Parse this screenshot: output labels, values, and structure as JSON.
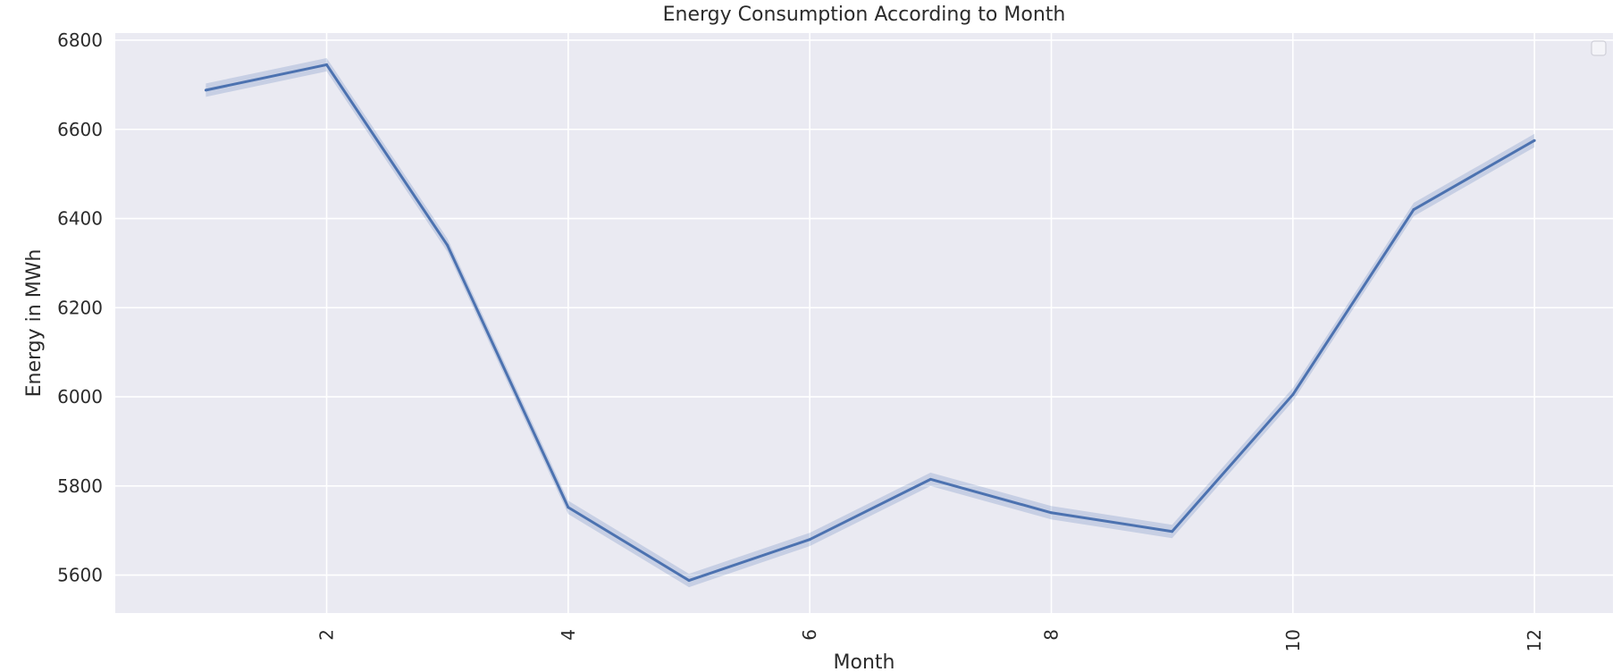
{
  "chart_data": {
    "type": "line",
    "title": "Energy Consumption According to Month",
    "xlabel": "Month",
    "ylabel": "Energy in MWh",
    "x": [
      1,
      2,
      3,
      4,
      5,
      6,
      7,
      8,
      9,
      10,
      11,
      12
    ],
    "series": [
      {
        "values": [
          6688,
          6745,
          6340,
          5752,
          5588,
          5680,
          5815,
          5740,
          5698,
          6005,
          6420,
          6575
        ],
        "ci_lower": [
          6673,
          6730,
          6325,
          5737,
          5573,
          5665,
          5800,
          5725,
          5683,
          5990,
          6405,
          6560
        ],
        "ci_upper": [
          6703,
          6760,
          6355,
          5767,
          5603,
          5695,
          5830,
          5755,
          5713,
          6020,
          6435,
          6590
        ],
        "color": "#4c72b0"
      }
    ],
    "xlim": [
      0.25,
      12.65
    ],
    "ylim": [
      5515,
      6816
    ],
    "x_ticks": [
      2,
      4,
      6,
      8,
      10,
      12
    ],
    "y_ticks": [
      5600,
      5800,
      6000,
      6200,
      6400,
      6600,
      6800
    ],
    "x_tick_rotation": "vertical",
    "grid": true,
    "legend": "top-right, empty",
    "style": {
      "plot_background": "#eaeaf2",
      "grid_color": "#ffffff"
    }
  }
}
